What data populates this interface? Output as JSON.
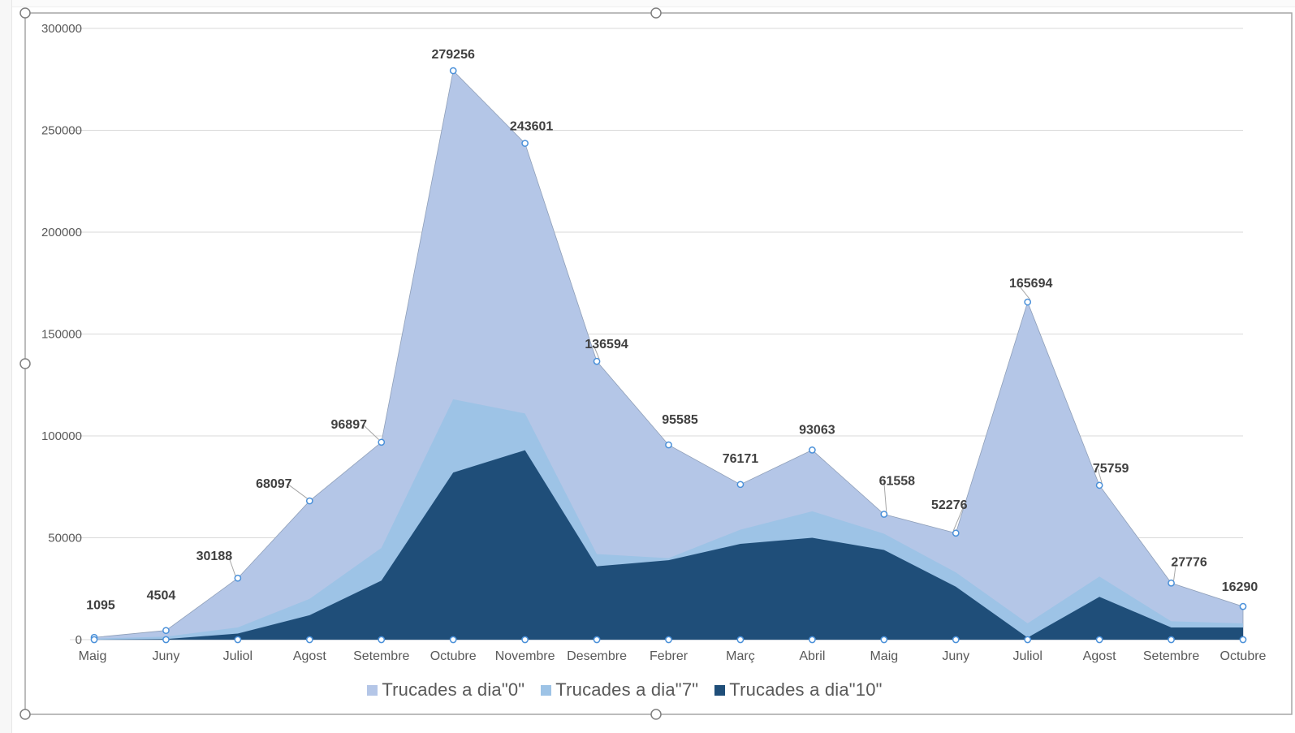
{
  "chart_data": {
    "type": "area",
    "categories": [
      "Maig",
      "Juny",
      "Juliol",
      "Agost",
      "Setembre",
      "Octubre",
      "Novembre",
      "Desembre",
      "Febrer",
      "Març",
      "Abril",
      "Maig",
      "Juny",
      "Juliol",
      "Agost",
      "Setembre",
      "Octubre"
    ],
    "series": [
      {
        "name": "Trucades a dia\"0\"",
        "color": "#b4c6e7",
        "values": [
          1095,
          4504,
          30188,
          68097,
          96897,
          279256,
          243601,
          136594,
          95585,
          76171,
          93063,
          61558,
          52276,
          165694,
          75759,
          27776,
          16290
        ],
        "data_labels": [
          "1095",
          "4504",
          "30188",
          "68097",
          "96897",
          "279256",
          "243601",
          "136594",
          "95585",
          "76171",
          "93063",
          "61558",
          "52276",
          "165694",
          "75759",
          "27776",
          "16290"
        ]
      },
      {
        "name": "Trucades a dia\"7\"",
        "color": "#9dc3e6",
        "values": [
          500,
          1500,
          6000,
          20000,
          45000,
          118000,
          111000,
          42000,
          40000,
          54000,
          63000,
          52000,
          33000,
          8000,
          31000,
          9000,
          8000
        ]
      },
      {
        "name": "Trucades a dia\"10\"",
        "color": "#1f4e79",
        "values": [
          0,
          300,
          3000,
          12000,
          29000,
          82000,
          93000,
          36000,
          39000,
          47000,
          50000,
          44000,
          26000,
          1000,
          21000,
          6000,
          6000
        ]
      }
    ],
    "ylim": [
      0,
      300000
    ],
    "y_ticks": [
      "0",
      "50000",
      "100000",
      "150000",
      "200000",
      "250000",
      "300000"
    ],
    "grid": true,
    "legend_position": "bottom"
  }
}
